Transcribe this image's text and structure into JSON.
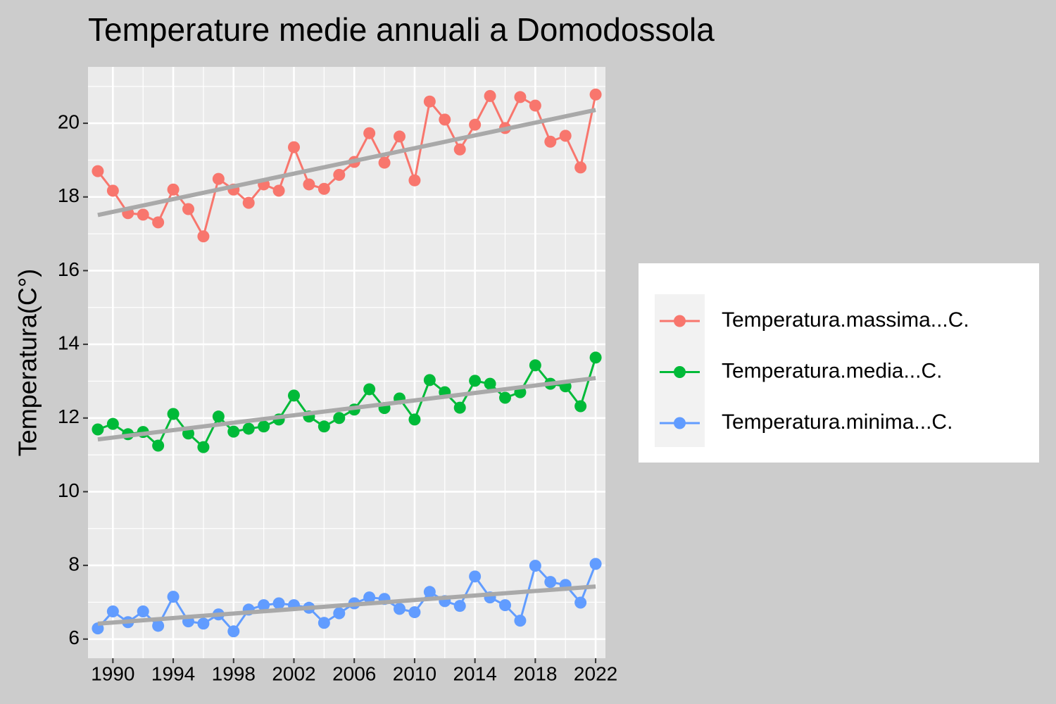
{
  "chart_data": {
    "type": "line",
    "title": "Temperature medie annuali a Domodossola",
    "y_label": "Temperatura(C°)",
    "x": [
      1989,
      1990,
      1991,
      1992,
      1993,
      1994,
      1995,
      1996,
      1997,
      1998,
      1999,
      2000,
      2001,
      2002,
      2003,
      2004,
      2005,
      2006,
      2007,
      2008,
      2009,
      2010,
      2011,
      2012,
      2013,
      2014,
      2015,
      2016,
      2017,
      2018,
      2019,
      2020,
      2021,
      2022
    ],
    "series": [
      {
        "name": "Temperatura.massima...C.",
        "color": "#F8766D",
        "values": [
          18.7,
          18.17,
          17.56,
          17.52,
          17.31,
          18.2,
          17.67,
          16.93,
          18.49,
          18.2,
          17.84,
          18.34,
          18.17,
          19.35,
          18.34,
          18.22,
          18.6,
          18.95,
          19.73,
          18.93,
          19.64,
          18.45,
          20.59,
          20.1,
          19.29,
          19.96,
          20.74,
          19.87,
          20.71,
          20.48,
          19.5,
          19.66,
          18.8,
          20.78
        ]
      },
      {
        "name": "Temperatura.media...C.",
        "color": "#00BA38",
        "values": [
          11.69,
          11.84,
          11.56,
          11.62,
          11.25,
          12.11,
          11.58,
          11.21,
          12.04,
          11.63,
          11.71,
          11.77,
          11.96,
          12.61,
          12.04,
          11.77,
          12.0,
          12.23,
          12.78,
          12.27,
          12.53,
          11.96,
          13.03,
          12.7,
          12.28,
          13.01,
          12.93,
          12.55,
          12.7,
          13.43,
          12.93,
          12.86,
          12.32,
          13.64
        ]
      },
      {
        "name": "Temperatura.minima...C.",
        "color": "#619CFF",
        "values": [
          6.29,
          6.75,
          6.46,
          6.75,
          6.36,
          7.15,
          6.48,
          6.42,
          6.67,
          6.21,
          6.8,
          6.92,
          6.97,
          6.92,
          6.85,
          6.44,
          6.7,
          6.97,
          7.13,
          7.09,
          6.82,
          6.73,
          7.28,
          7.03,
          6.9,
          7.7,
          7.13,
          6.92,
          6.5,
          7.99,
          7.55,
          7.47,
          6.99,
          8.04
        ]
      }
    ],
    "trend_color": "#A9A9A9",
    "xlim": [
      1988.35,
      2022.65
    ],
    "xticks": [
      1990,
      1994,
      1998,
      2002,
      2006,
      2010,
      2014,
      2018,
      2022
    ],
    "ylim": [
      5.48,
      21.53
    ],
    "yticks": [
      6,
      8,
      10,
      12,
      14,
      16,
      18,
      20
    ],
    "grid": true,
    "legend": "right"
  }
}
